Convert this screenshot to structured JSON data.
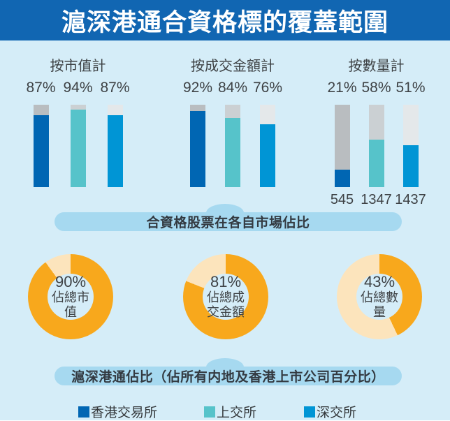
{
  "title": "滬深港通合資格標的覆蓋範圍",
  "banners": {
    "bar_caption": "合資格股票在各自市場佔比",
    "donut_caption": "滬深港通佔比（佔所有内地及香港上市公司百分比）"
  },
  "legend": [
    {
      "label": "香港交易所",
      "color": "#0066b3"
    },
    {
      "label": "上交所",
      "color": "#56c3ca"
    },
    {
      "label": "深交所",
      "color": "#0095d5"
    }
  ],
  "colors": {
    "header_bg": "#1166b2",
    "page_bg": "#d5edf8",
    "pill_bg": "#a6d9f0",
    "hkex": "#0066b3",
    "sse": "#56c3ca",
    "szse": "#0095d5",
    "remainder_gray_1": "#b9bdc0",
    "remainder_gray_2": "#cbd0d3",
    "remainder_gray_3": "#e4e8ea",
    "donut_main": "#f8a81c",
    "donut_rest": "#fce4bc",
    "text_dark": "#3e4245"
  },
  "chart_data": [
    {
      "type": "bar",
      "title": "按市值計",
      "categories": [
        "香港交易所",
        "上交所",
        "深交所"
      ],
      "values": [
        87,
        94,
        87
      ],
      "labels": [
        "87%",
        "94%",
        "87%"
      ],
      "ylim": [
        0,
        100
      ]
    },
    {
      "type": "bar",
      "title": "按成交金額計",
      "categories": [
        "香港交易所",
        "上交所",
        "深交所"
      ],
      "values": [
        92,
        84,
        76
      ],
      "labels": [
        "92%",
        "84%",
        "76%"
      ],
      "ylim": [
        0,
        100
      ]
    },
    {
      "type": "bar",
      "title": "按數量計",
      "categories": [
        "香港交易所",
        "上交所",
        "深交所"
      ],
      "values": [
        21,
        58,
        51
      ],
      "labels": [
        "21%",
        "58%",
        "51%"
      ],
      "counts": [
        "545",
        "1347",
        "1437"
      ],
      "ylim": [
        0,
        100
      ]
    },
    {
      "type": "pie",
      "subtype": "donut",
      "value": 90,
      "label": "90%",
      "caption": "佔總市值"
    },
    {
      "type": "pie",
      "subtype": "donut",
      "value": 81,
      "label": "81%",
      "caption": "佔總成交金額"
    },
    {
      "type": "pie",
      "subtype": "donut",
      "value": 43,
      "label": "43%",
      "caption": "佔總數量"
    }
  ]
}
